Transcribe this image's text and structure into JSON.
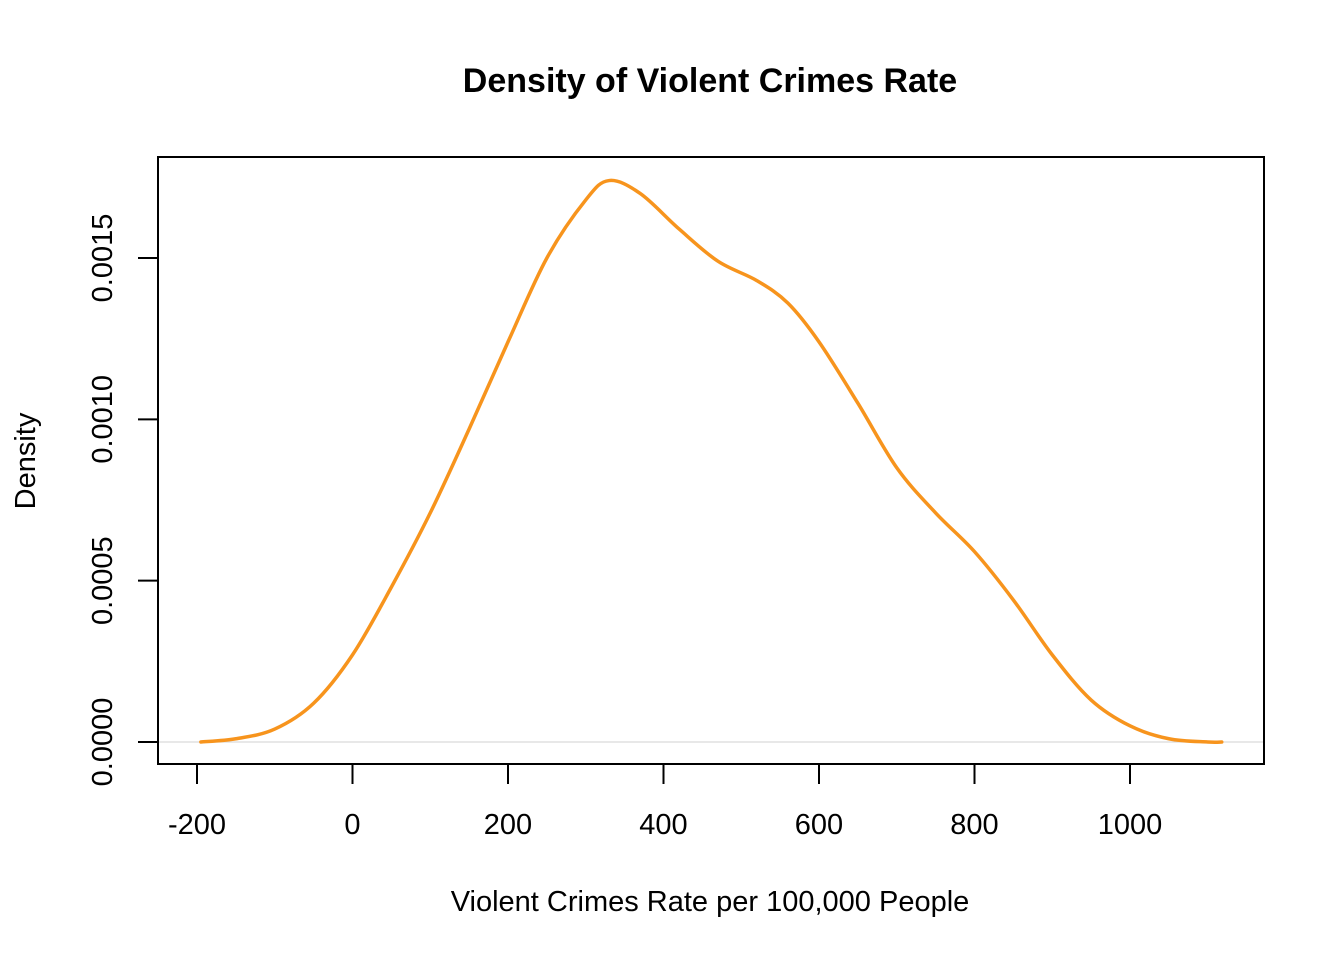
{
  "chart_data": {
    "type": "line",
    "title": "Density of Violent Crimes Rate",
    "xlabel": "Violent Crimes Rate per 100,000 People",
    "ylabel": "Density",
    "xlim": [
      -200,
      1120
    ],
    "ylim": [
      -6.5e-05,
      0.001815
    ],
    "x_ticks": [
      -200,
      0,
      200,
      400,
      600,
      800,
      1000
    ],
    "x_tick_labels": [
      "-200",
      "0",
      "200",
      "400",
      "600",
      "800",
      "1000"
    ],
    "y_ticks": [
      0,
      0.0005,
      0.001,
      0.0015
    ],
    "y_tick_labels": [
      "0.0000",
      "0.0005",
      "0.0010",
      "0.0015"
    ],
    "grid": false,
    "series": [
      {
        "name": "density",
        "color": "#f7941d",
        "x": [
          -195,
          -150,
          -100,
          -50,
          0,
          50,
          100,
          150,
          200,
          250,
          300,
          330,
          370,
          420,
          470,
          520,
          560,
          600,
          650,
          700,
          750,
          800,
          850,
          900,
          950,
          1000,
          1050,
          1100,
          1118
        ],
        "y": [
          0.0,
          1e-05,
          4e-05,
          0.00012,
          0.00027,
          0.00048,
          0.00071,
          0.00097,
          0.00124,
          0.0015,
          0.00168,
          0.00174,
          0.0017,
          0.00159,
          0.00149,
          0.00143,
          0.00136,
          0.00124,
          0.00105,
          0.00085,
          0.00071,
          0.00059,
          0.00044,
          0.00027,
          0.00013,
          5e-05,
          1e-05,
          0.0,
          0.0
        ]
      }
    ]
  }
}
